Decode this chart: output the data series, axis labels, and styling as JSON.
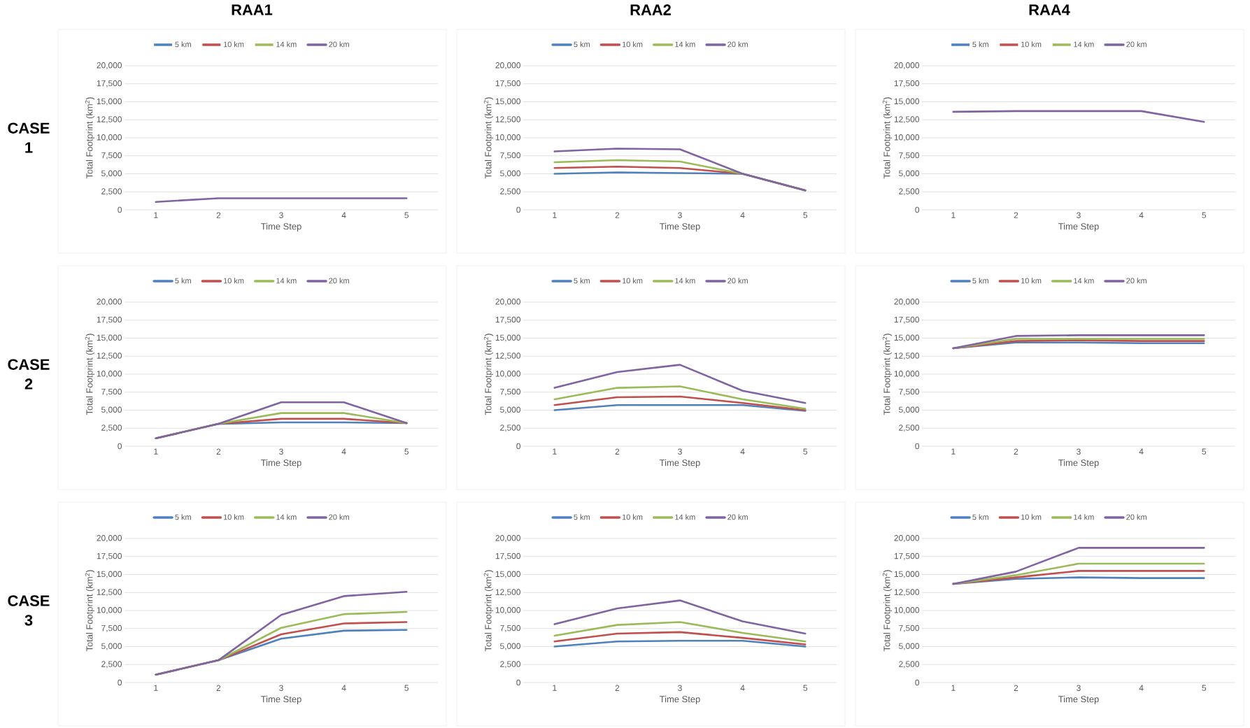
{
  "chart_data": [
    {
      "type": "line",
      "title": "RAA1",
      "annotations": [
        "CASE 1"
      ],
      "categories": [
        "1",
        "2",
        "3",
        "4",
        "5"
      ],
      "xlabel": "Time Step",
      "ylabel": "Total Footprint (km$^{2}$)",
      "ylim": [
        0,
        20000
      ],
      "yticks": [
        0,
        {
          "value": 2500,
          "label": "2,500"
        },
        {
          "value": 5000,
          "label": "5,000"
        },
        {
          "value": 7500,
          "label": "7,500"
        },
        {
          "value": 10000,
          "label": "10,000"
        },
        {
          "value": 12500,
          "label": "12,500"
        },
        {
          "value": 15000,
          "label": "15,000"
        },
        {
          "value": 17500,
          "label": "17,500"
        },
        {
          "value": 20000,
          "label": "20,000"
        }
      ],
      "grid": "y",
      "legend": "top",
      "series": [
        {
          "name": "5 km",
          "color": "#4f81bd",
          "values": [
            null,
            null,
            null,
            null,
            null
          ]
        },
        {
          "name": "10 km",
          "color": "#c0504d",
          "values": [
            null,
            null,
            null,
            null,
            null
          ]
        },
        {
          "name": "14 km",
          "color": "#9bbb59",
          "values": [
            null,
            null,
            null,
            null,
            null
          ]
        },
        {
          "name": "20 km",
          "color": "#8064a2",
          "values": [
            1100,
            1600,
            1600,
            1600,
            1600
          ]
        }
      ]
    },
    {
      "type": "line",
      "title": "RAA2",
      "categories": [
        "1",
        "2",
        "3",
        "4",
        "5"
      ],
      "xlabel": "Time Step",
      "ylabel": "Total Footprint (km$^{2}$)",
      "ylim": [
        0,
        20000
      ],
      "yticks": [
        0,
        {
          "value": 2500,
          "label": "2,500"
        },
        {
          "value": 5000,
          "label": "5,000"
        },
        {
          "value": 7500,
          "label": "7,500"
        },
        {
          "value": 10000,
          "label": "10,000"
        },
        {
          "value": 12500,
          "label": "12,500"
        },
        {
          "value": 15000,
          "label": "15,000"
        },
        {
          "value": 17500,
          "label": "17,500"
        },
        {
          "value": 20000,
          "label": "20,000"
        }
      ],
      "grid": "y",
      "legend": "top",
      "series": [
        {
          "name": "5 km",
          "color": "#4f81bd",
          "values": [
            5000,
            5200,
            5100,
            5000,
            2700
          ]
        },
        {
          "name": "10 km",
          "color": "#c0504d",
          "values": [
            5800,
            6000,
            5800,
            5000,
            2700
          ]
        },
        {
          "name": "14 km",
          "color": "#9bbb59",
          "values": [
            6600,
            6900,
            6700,
            5000,
            2700
          ]
        },
        {
          "name": "20 km",
          "color": "#8064a2",
          "values": [
            8100,
            8500,
            8400,
            5000,
            2700
          ]
        }
      ]
    },
    {
      "type": "line",
      "title": "RAA4",
      "categories": [
        "1",
        "2",
        "3",
        "4",
        "5"
      ],
      "xlabel": "Time Step",
      "ylabel": "Total Footprint (km$^{2}$)",
      "ylim": [
        0,
        20000
      ],
      "yticks": [
        0,
        {
          "value": 2500,
          "label": "2,500"
        },
        {
          "value": 5000,
          "label": "5,000"
        },
        {
          "value": 7500,
          "label": "7,500"
        },
        {
          "value": 10000,
          "label": "10,000"
        },
        {
          "value": 12500,
          "label": "12,500"
        },
        {
          "value": 15000,
          "label": "15,000"
        },
        {
          "value": 17500,
          "label": "17,500"
        },
        {
          "value": 20000,
          "label": "20,000"
        }
      ],
      "grid": "y",
      "legend": "top",
      "series": [
        {
          "name": "5 km",
          "color": "#4f81bd",
          "values": [
            null,
            null,
            null,
            null,
            null
          ]
        },
        {
          "name": "10 km",
          "color": "#c0504d",
          "values": [
            null,
            null,
            null,
            null,
            null
          ]
        },
        {
          "name": "14 km",
          "color": "#9bbb59",
          "values": [
            null,
            null,
            null,
            null,
            null
          ]
        },
        {
          "name": "20 km",
          "color": "#8064a2",
          "values": [
            13600,
            13700,
            13700,
            13700,
            12200
          ]
        }
      ]
    },
    {
      "type": "line",
      "annotations": [
        "CASE 2"
      ],
      "categories": [
        "1",
        "2",
        "3",
        "4",
        "5"
      ],
      "xlabel": "Time Step",
      "ylabel": "Total Footprint (km$^{2}$)",
      "ylim": [
        0,
        20000
      ],
      "yticks": [
        0,
        {
          "value": 2500,
          "label": "2,500"
        },
        {
          "value": 5000,
          "label": "5,000"
        },
        {
          "value": 7500,
          "label": "7,500"
        },
        {
          "value": 10000,
          "label": "10,000"
        },
        {
          "value": 12500,
          "label": "12,500"
        },
        {
          "value": 15000,
          "label": "15,000"
        },
        {
          "value": 17500,
          "label": "17,500"
        },
        {
          "value": 20000,
          "label": "20,000"
        }
      ],
      "grid": "y",
      "legend": "top",
      "series": [
        {
          "name": "5 km",
          "color": "#4f81bd",
          "values": [
            1100,
            3100,
            3300,
            3300,
            3200
          ]
        },
        {
          "name": "10 km",
          "color": "#c0504d",
          "values": [
            1100,
            3100,
            3800,
            3800,
            3200
          ]
        },
        {
          "name": "14 km",
          "color": "#9bbb59",
          "values": [
            1100,
            3100,
            4600,
            4600,
            3200
          ]
        },
        {
          "name": "20 km",
          "color": "#8064a2",
          "values": [
            1100,
            3100,
            6100,
            6100,
            3200
          ]
        }
      ]
    },
    {
      "type": "line",
      "categories": [
        "1",
        "2",
        "3",
        "4",
        "5"
      ],
      "xlabel": "Time Step",
      "ylabel": "Total Footprint (km$^{2}$)",
      "ylim": [
        0,
        20000
      ],
      "yticks": [
        0,
        {
          "value": 2500,
          "label": "2,500"
        },
        {
          "value": 5000,
          "label": "5,000"
        },
        {
          "value": 7500,
          "label": "7,500"
        },
        {
          "value": 10000,
          "label": "10,000"
        },
        {
          "value": 12500,
          "label": "12,500"
        },
        {
          "value": 15000,
          "label": "15,000"
        },
        {
          "value": 17500,
          "label": "17,500"
        },
        {
          "value": 20000,
          "label": "20,000"
        }
      ],
      "grid": "y",
      "legend": "top",
      "series": [
        {
          "name": "5 km",
          "color": "#4f81bd",
          "values": [
            5000,
            5700,
            5700,
            5700,
            4900
          ]
        },
        {
          "name": "10 km",
          "color": "#c0504d",
          "values": [
            5700,
            6800,
            6900,
            6000,
            5000
          ]
        },
        {
          "name": "14 km",
          "color": "#9bbb59",
          "values": [
            6500,
            8100,
            8300,
            6500,
            5200
          ]
        },
        {
          "name": "20 km",
          "color": "#8064a2",
          "values": [
            8100,
            10300,
            11300,
            7700,
            6000
          ]
        }
      ]
    },
    {
      "type": "line",
      "categories": [
        "1",
        "2",
        "3",
        "4",
        "5"
      ],
      "xlabel": "Time Step",
      "ylabel": "Total Footprint (km$^{2}$)",
      "ylim": [
        0,
        20000
      ],
      "yticks": [
        0,
        {
          "value": 2500,
          "label": "2,500"
        },
        {
          "value": 5000,
          "label": "5,000"
        },
        {
          "value": 7500,
          "label": "7,500"
        },
        {
          "value": 10000,
          "label": "10,000"
        },
        {
          "value": 12500,
          "label": "12,500"
        },
        {
          "value": 15000,
          "label": "15,000"
        },
        {
          "value": 17500,
          "label": "17,500"
        },
        {
          "value": 20000,
          "label": "20,000"
        }
      ],
      "grid": "y",
      "legend": "top",
      "series": [
        {
          "name": "5 km",
          "color": "#4f81bd",
          "values": [
            13600,
            14400,
            14400,
            14300,
            14300
          ]
        },
        {
          "name": "10 km",
          "color": "#c0504d",
          "values": [
            13600,
            14600,
            14700,
            14600,
            14600
          ]
        },
        {
          "name": "14 km",
          "color": "#9bbb59",
          "values": [
            13600,
            14900,
            14900,
            14900,
            14900
          ]
        },
        {
          "name": "20 km",
          "color": "#8064a2",
          "values": [
            13600,
            15300,
            15400,
            15400,
            15400
          ]
        }
      ]
    },
    {
      "type": "line",
      "annotations": [
        "CASE 3"
      ],
      "categories": [
        "1",
        "2",
        "3",
        "4",
        "5"
      ],
      "xlabel": "Time Step",
      "ylabel": "Total Footprint (km$^{2}$)",
      "ylim": [
        0,
        20000
      ],
      "yticks": [
        0,
        {
          "value": 2500,
          "label": "2,500"
        },
        {
          "value": 5000,
          "label": "5,000"
        },
        {
          "value": 7500,
          "label": "7,500"
        },
        {
          "value": 10000,
          "label": "10,000"
        },
        {
          "value": 12500,
          "label": "12,500"
        },
        {
          "value": 15000,
          "label": "15,000"
        },
        {
          "value": 17500,
          "label": "17,500"
        },
        {
          "value": 20000,
          "label": "20,000"
        }
      ],
      "grid": "y",
      "legend": "top",
      "series": [
        {
          "name": "5 km",
          "color": "#4f81bd",
          "values": [
            1100,
            3100,
            6100,
            7200,
            7300
          ]
        },
        {
          "name": "10 km",
          "color": "#c0504d",
          "values": [
            1100,
            3100,
            6700,
            8200,
            8400
          ]
        },
        {
          "name": "14 km",
          "color": "#9bbb59",
          "values": [
            1100,
            3100,
            7600,
            9500,
            9800
          ]
        },
        {
          "name": "20 km",
          "color": "#8064a2",
          "values": [
            1100,
            3100,
            9400,
            12000,
            12600
          ]
        }
      ]
    },
    {
      "type": "line",
      "categories": [
        "1",
        "2",
        "3",
        "4",
        "5"
      ],
      "xlabel": "Time Step",
      "ylabel": "Total Footprint (km$^{2}$)",
      "ylim": [
        0,
        20000
      ],
      "yticks": [
        0,
        {
          "value": 2500,
          "label": "2,500"
        },
        {
          "value": 5000,
          "label": "5,000"
        },
        {
          "value": 7500,
          "label": "7,500"
        },
        {
          "value": 10000,
          "label": "10,000"
        },
        {
          "value": 12500,
          "label": "12,500"
        },
        {
          "value": 15000,
          "label": "15,000"
        },
        {
          "value": 17500,
          "label": "17,500"
        },
        {
          "value": 20000,
          "label": "20,000"
        }
      ],
      "grid": "y",
      "legend": "top",
      "series": [
        {
          "name": "5 km",
          "color": "#4f81bd",
          "values": [
            5000,
            5700,
            5800,
            5800,
            5000
          ]
        },
        {
          "name": "10 km",
          "color": "#c0504d",
          "values": [
            5700,
            6800,
            7000,
            6200,
            5300
          ]
        },
        {
          "name": "14 km",
          "color": "#9bbb59",
          "values": [
            6500,
            8000,
            8400,
            6900,
            5700
          ]
        },
        {
          "name": "20 km",
          "color": "#8064a2",
          "values": [
            8100,
            10300,
            11400,
            8500,
            6800
          ]
        }
      ]
    },
    {
      "type": "line",
      "categories": [
        "1",
        "2",
        "3",
        "4",
        "5"
      ],
      "xlabel": "Time Step",
      "ylabel": "Total Footprint (km$^{2}$)",
      "ylim": [
        0,
        20000
      ],
      "yticks": [
        0,
        {
          "value": 2500,
          "label": "2,500"
        },
        {
          "value": 5000,
          "label": "5,000"
        },
        {
          "value": 7500,
          "label": "7,500"
        },
        {
          "value": 10000,
          "label": "10,000"
        },
        {
          "value": 12500,
          "label": "12,500"
        },
        {
          "value": 15000,
          "label": "15,000"
        },
        {
          "value": 17500,
          "label": "17,500"
        },
        {
          "value": 20000,
          "label": "20,000"
        }
      ],
      "grid": "y",
      "legend": "top",
      "series": [
        {
          "name": "5 km",
          "color": "#4f81bd",
          "values": [
            13700,
            14400,
            14600,
            14500,
            14500
          ]
        },
        {
          "name": "10 km",
          "color": "#c0504d",
          "values": [
            13700,
            14600,
            15500,
            15500,
            15500
          ]
        },
        {
          "name": "14 km",
          "color": "#9bbb59",
          "values": [
            13700,
            14900,
            16500,
            16500,
            16500
          ]
        },
        {
          "name": "20 km",
          "color": "#8064a2",
          "values": [
            13700,
            15400,
            18700,
            18700,
            18700
          ]
        }
      ]
    }
  ]
}
